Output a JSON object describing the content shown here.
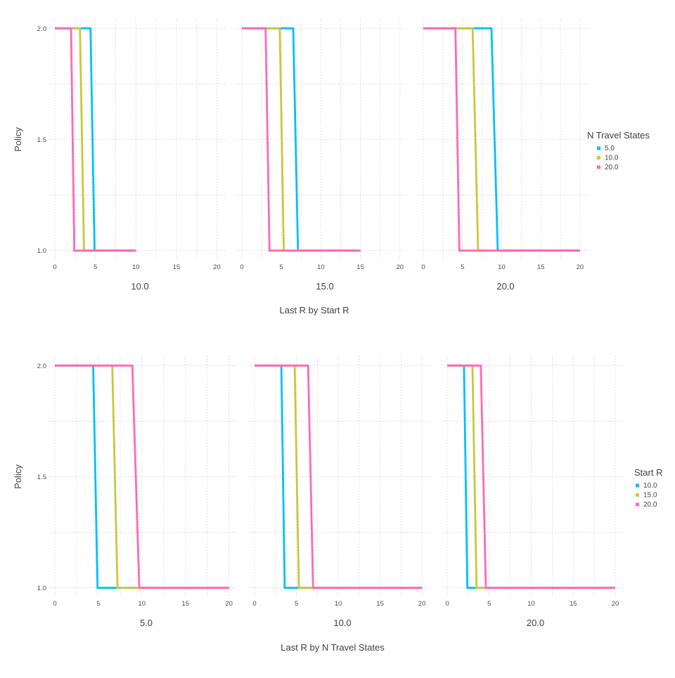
{
  "chart_data": [
    {
      "type": "line",
      "xlabel": "Last R by Start R",
      "ylabel": "Policy",
      "xlim": [
        0,
        21
      ],
      "ylim": [
        0.98,
        2.02
      ],
      "xticks": [
        "0",
        "5",
        "10",
        "15",
        "20"
      ],
      "yticks": [
        "1.0",
        "1.5",
        "2.0"
      ],
      "grid": true,
      "legend": {
        "title": "N Travel States",
        "placement": "right",
        "entries": [
          "5.0",
          "10.0",
          "20.0"
        ],
        "colors": [
          "#00bfff",
          "#c8c83c",
          "#ff69b4"
        ]
      },
      "panels": [
        {
          "label": "10.0",
          "series": [
            {
              "name": "5.0",
              "x": [
                0,
                4.4,
                4.9,
                10
              ],
              "y": [
                2.0,
                2.0,
                1.0,
                1.0
              ]
            },
            {
              "name": "10.0",
              "x": [
                0,
                3.1,
                3.6,
                10
              ],
              "y": [
                2.0,
                2.0,
                1.0,
                1.0
              ]
            },
            {
              "name": "20.0",
              "x": [
                0,
                2.0,
                2.4,
                10
              ],
              "y": [
                2.0,
                2.0,
                1.0,
                1.0
              ]
            }
          ]
        },
        {
          "label": "15.0",
          "series": [
            {
              "name": "5.0",
              "x": [
                0,
                6.5,
                7.1,
                15
              ],
              "y": [
                2.0,
                2.0,
                1.0,
                1.0
              ]
            },
            {
              "name": "10.0",
              "x": [
                0,
                4.8,
                5.3,
                15
              ],
              "y": [
                2.0,
                2.0,
                1.0,
                1.0
              ]
            },
            {
              "name": "20.0",
              "x": [
                0,
                3.0,
                3.5,
                15
              ],
              "y": [
                2.0,
                2.0,
                1.0,
                1.0
              ]
            }
          ]
        },
        {
          "label": "20.0",
          "series": [
            {
              "name": "5.0",
              "x": [
                0,
                8.7,
                9.5,
                20
              ],
              "y": [
                2.0,
                2.0,
                1.0,
                1.0
              ]
            },
            {
              "name": "10.0",
              "x": [
                0,
                6.3,
                7.0,
                20
              ],
              "y": [
                2.0,
                2.0,
                1.0,
                1.0
              ]
            },
            {
              "name": "20.0",
              "x": [
                0,
                4.1,
                4.6,
                20
              ],
              "y": [
                2.0,
                2.0,
                1.0,
                1.0
              ]
            }
          ]
        }
      ]
    },
    {
      "type": "line",
      "xlabel": "Last R by N Travel States",
      "ylabel": "Policy",
      "xlim": [
        0,
        21
      ],
      "ylim": [
        0.98,
        2.02
      ],
      "xticks": [
        "0",
        "5",
        "10",
        "15",
        "20"
      ],
      "yticks": [
        "1.0",
        "1.5",
        "2.0"
      ],
      "grid": true,
      "legend": {
        "title": "Start R",
        "placement": "right",
        "entries": [
          "10.0",
          "15.0",
          "20.0"
        ],
        "colors": [
          "#00bfff",
          "#c8c83c",
          "#ff69b4"
        ]
      },
      "panels": [
        {
          "label": "5.0",
          "series": [
            {
              "name": "10.0",
              "x": [
                0,
                4.4,
                4.9,
                20
              ],
              "y": [
                2.0,
                2.0,
                1.0,
                1.0
              ]
            },
            {
              "name": "15.0",
              "x": [
                0,
                6.6,
                7.2,
                20
              ],
              "y": [
                2.0,
                2.0,
                1.0,
                1.0
              ]
            },
            {
              "name": "20.0",
              "x": [
                0,
                8.9,
                9.7,
                20
              ],
              "y": [
                2.0,
                2.0,
                1.0,
                1.0
              ]
            }
          ]
        },
        {
          "label": "10.0",
          "series": [
            {
              "name": "10.0",
              "x": [
                0,
                3.2,
                3.6,
                20
              ],
              "y": [
                2.0,
                2.0,
                1.0,
                1.0
              ]
            },
            {
              "name": "15.0",
              "x": [
                0,
                4.8,
                5.3,
                20
              ],
              "y": [
                2.0,
                2.0,
                1.0,
                1.0
              ]
            },
            {
              "name": "20.0",
              "x": [
                0,
                6.4,
                7.0,
                20
              ],
              "y": [
                2.0,
                2.0,
                1.0,
                1.0
              ]
            }
          ]
        },
        {
          "label": "20.0",
          "series": [
            {
              "name": "10.0",
              "x": [
                0,
                2.0,
                2.4,
                20
              ],
              "y": [
                2.0,
                2.0,
                1.0,
                1.0
              ]
            },
            {
              "name": "15.0",
              "x": [
                0,
                3.0,
                3.5,
                20
              ],
              "y": [
                2.0,
                2.0,
                1.0,
                1.0
              ]
            },
            {
              "name": "20.0",
              "x": [
                0,
                4.0,
                4.6,
                20
              ],
              "y": [
                2.0,
                2.0,
                1.0,
                1.0
              ]
            }
          ]
        }
      ]
    }
  ]
}
